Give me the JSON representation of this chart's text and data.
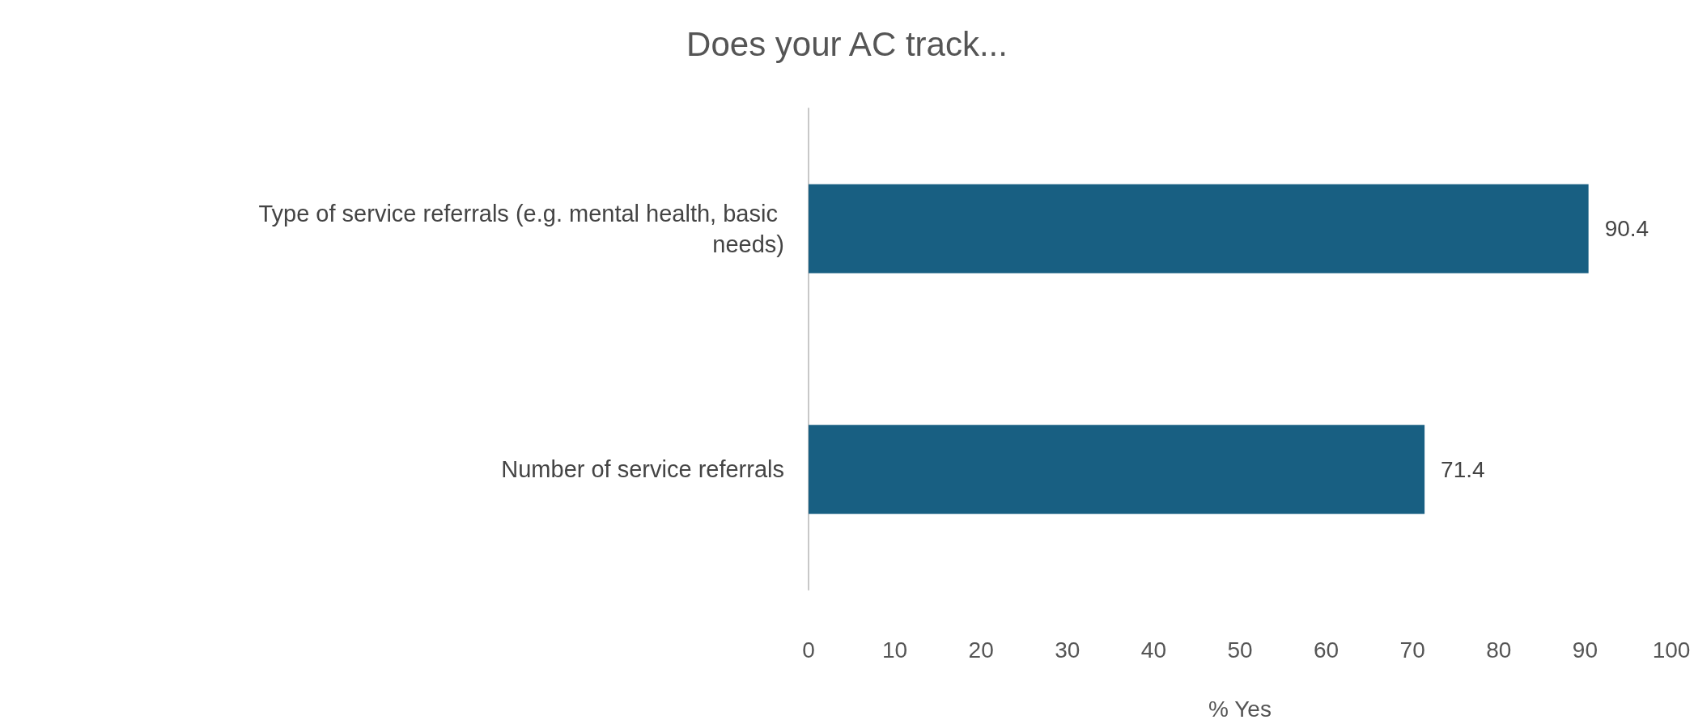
{
  "chart_data": {
    "type": "bar",
    "orientation": "horizontal",
    "title": "Does your AC track...",
    "xlabel": "% Yes",
    "categories": [
      "Type of service referrals (e.g. mental health, basic needs)",
      "Number of service referrals"
    ],
    "values": [
      90.4,
      71.4
    ],
    "color": "#185f82",
    "xlim": [
      0,
      100
    ],
    "xticks": [
      0,
      10,
      20,
      30,
      40,
      50,
      60,
      70,
      80,
      90,
      100
    ],
    "grid": false,
    "data_labels": true
  }
}
